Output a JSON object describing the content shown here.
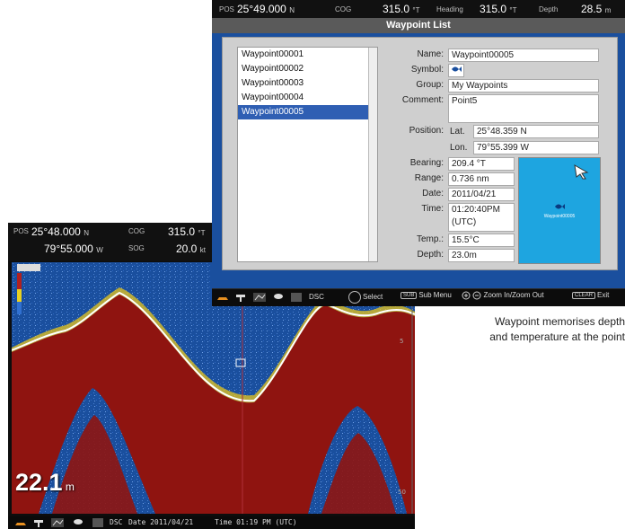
{
  "sonar": {
    "pos_label": "POS",
    "lat": "25°48.000",
    "lat_hemi": "N",
    "lon": "79°55.000",
    "lon_hemi": "W",
    "cog_label": "COG",
    "cog_value": "315.0",
    "cog_unit": "°T",
    "sog_label": "SOG",
    "sog_value": "20.0",
    "sog_unit": "kt",
    "depth_value": "22.1",
    "depth_unit": "m",
    "scale_right": [
      "5",
      "50"
    ],
    "footer": {
      "dsc_label": "DSC",
      "date_text": "Date 2011/04/21",
      "time_text": "Time 01:19 PM (UTC)"
    }
  },
  "waypoint_window": {
    "header": {
      "pos_label": "POS",
      "pos_value": "25°49.000",
      "pos_hemi": "N",
      "cog_label": "COG",
      "cog_value": "315.0",
      "cog_unit": "°T",
      "heading_label": "Heading",
      "heading_value": "315.0",
      "heading_unit": "°T",
      "depth_label": "Depth",
      "depth_value": "28.5",
      "depth_unit": "m"
    },
    "title": "Waypoint List",
    "list": [
      "Waypoint00001",
      "Waypoint00002",
      "Waypoint00003",
      "Waypoint00004",
      "Waypoint00005"
    ],
    "selected_index": 4,
    "details": {
      "name_label": "Name:",
      "name_value": "Waypoint00005",
      "symbol_label": "Symbol:",
      "group_label": "Group:",
      "group_value": "My Waypoints",
      "comment_label": "Comment:",
      "comment_value": "Point5",
      "position_label": "Position:",
      "lat_label": "Lat.",
      "lat_value": "25°48.359 N",
      "lon_label": "Lon.",
      "lon_value": "79°55.399 W",
      "bearing_label": "Bearing:",
      "bearing_value": "209.4 °T",
      "range_label": "Range:",
      "range_value": "0.736 nm",
      "date_label": "Date:",
      "date_value": "2011/04/21",
      "time_label": "Time:",
      "time_value_1": "01:20:40PM",
      "time_value_2": "(UTC)",
      "temp_label": "Temp.:",
      "temp_value": "15.5°C",
      "depth_label": "Depth:",
      "depth_value": "23.0m",
      "map_label": "Waypoint00005"
    },
    "footer": {
      "dsc_label": "DSC",
      "select_label": "Select",
      "submenu_key": "SUB",
      "submenu_label": "Sub Menu",
      "zoom_label": "Zoom In/Zoom Out",
      "clear_key": "CLEAR",
      "exit_label": "Exit"
    }
  },
  "caption": {
    "line1": "Waypoint memorises depth",
    "line2": "and temperature at the point"
  },
  "colors": {
    "water": "#1a4f9e",
    "bottom_echo": "#8f1410",
    "echo_yellow": "#f2d21c",
    "selection": "#2f5fb3",
    "map_fill": "#1ea5e0"
  }
}
